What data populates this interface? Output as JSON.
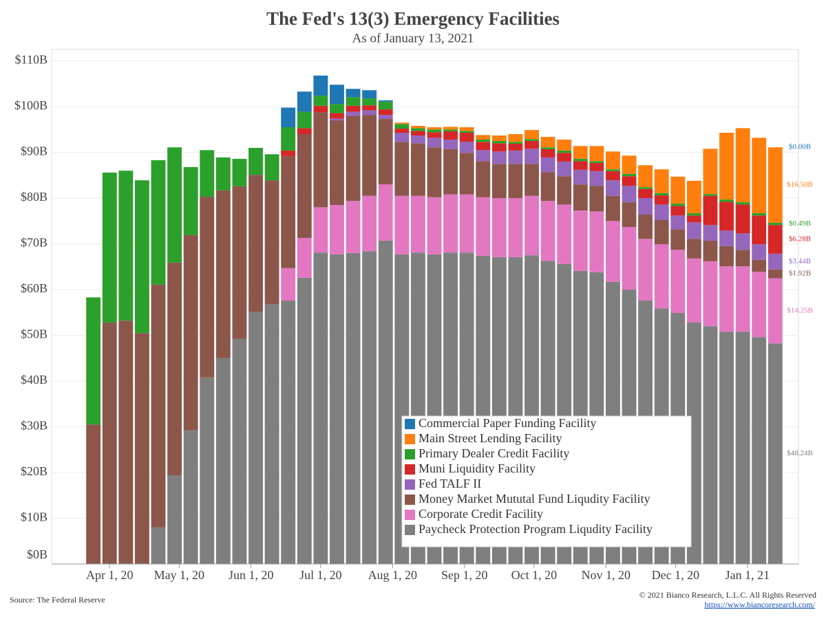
{
  "chart_data": {
    "type": "stacked_bar",
    "title": "The Fed's 13(3) Emergency Facilities",
    "subtitle": "As of January 13, 2021",
    "source": "Source: The Federal Reserve",
    "copyright": "© 2021 Bianco Research, L.L.C. All Rights Reserved",
    "url": "https://www.biancoresearch.com/",
    "x": [
      "2020-03-25",
      "2020-04-01",
      "2020-04-08",
      "2020-04-15",
      "2020-04-22",
      "2020-04-29",
      "2020-05-06",
      "2020-05-13",
      "2020-05-20",
      "2020-05-27",
      "2020-06-03",
      "2020-06-10",
      "2020-06-17",
      "2020-06-24",
      "2020-07-01",
      "2020-07-08",
      "2020-07-15",
      "2020-07-22",
      "2020-07-29",
      "2020-08-05",
      "2020-08-12",
      "2020-08-19",
      "2020-08-26",
      "2020-09-02",
      "2020-09-09",
      "2020-09-16",
      "2020-09-23",
      "2020-09-30",
      "2020-10-07",
      "2020-10-14",
      "2020-10-21",
      "2020-10-28",
      "2020-11-04",
      "2020-11-11",
      "2020-11-18",
      "2020-11-25",
      "2020-12-02",
      "2020-12-09",
      "2020-12-16",
      "2020-12-23",
      "2020-12-30",
      "2021-01-06",
      "2021-01-13"
    ],
    "xlim": [
      "2020-03-07",
      "2021-01-23"
    ],
    "xticks": [
      {
        "value": "2020-04-01",
        "label": "Apr 1, 20"
      },
      {
        "value": "2020-05-01",
        "label": "May 1, 20"
      },
      {
        "value": "2020-06-01",
        "label": "Jun 1, 20"
      },
      {
        "value": "2020-07-01",
        "label": "Jul 1, 20"
      },
      {
        "value": "2020-08-01",
        "label": "Aug 1, 20"
      },
      {
        "value": "2020-09-01",
        "label": "Sep 1, 20"
      },
      {
        "value": "2020-10-01",
        "label": "Oct 1, 20"
      },
      {
        "value": "2020-11-01",
        "label": "Nov 1, 20"
      },
      {
        "value": "2020-12-01",
        "label": "Dec 1, 20"
      },
      {
        "value": "2021-01-01",
        "label": "Jan 1, 21"
      }
    ],
    "ylim": [
      0,
      112.5
    ],
    "yticks": [
      {
        "value": 0,
        "label": "$0B"
      },
      {
        "value": 10,
        "label": "$10B"
      },
      {
        "value": 20,
        "label": "$20B"
      },
      {
        "value": 30,
        "label": "$30B"
      },
      {
        "value": 40,
        "label": "$40B"
      },
      {
        "value": 50,
        "label": "$50B"
      },
      {
        "value": 60,
        "label": "$60B"
      },
      {
        "value": 70,
        "label": "$70B"
      },
      {
        "value": 80,
        "label": "$80B"
      },
      {
        "value": 90,
        "label": "$90B"
      },
      {
        "value": 100,
        "label": "$100B"
      },
      {
        "value": 110,
        "label": "$110B"
      }
    ],
    "grid": true,
    "series": [
      {
        "name": "Commercial Paper Funding Facility",
        "color": "#1f77b4",
        "values": [
          0,
          0,
          0,
          0,
          0,
          0,
          0,
          0,
          0,
          0,
          0,
          0,
          4.3,
          4.4,
          4.4,
          4.2,
          1.8,
          1.8,
          0.3,
          0,
          0,
          0,
          0,
          0,
          0,
          0,
          0,
          0,
          0,
          0,
          0,
          0,
          0,
          0,
          0,
          0,
          0,
          0,
          0,
          0,
          0,
          0,
          0.0
        ],
        "value_labels": [
          null,
          null,
          null,
          null,
          null,
          null,
          null,
          null,
          null,
          null,
          null,
          null,
          null,
          null,
          null,
          null,
          null,
          null,
          null,
          null,
          null,
          null,
          null,
          null,
          null,
          null,
          null,
          null,
          null,
          null,
          null,
          null,
          null,
          null,
          null,
          null,
          null,
          null,
          null,
          null,
          null,
          null,
          "$0.00B"
        ]
      },
      {
        "name": "Main Street Lending Facility",
        "color": "#ff7f0e",
        "values": [
          0,
          0,
          0,
          0,
          0,
          0,
          0,
          0,
          0,
          0,
          0,
          0,
          0,
          0,
          0,
          0,
          0,
          0,
          0,
          0.3,
          0.5,
          0.5,
          0.6,
          0.8,
          1.0,
          1.2,
          1.7,
          2.0,
          2.3,
          2.4,
          2.8,
          3.3,
          3.9,
          4.0,
          4.8,
          5.2,
          5.9,
          7.1,
          9.9,
          14.6,
          16.2,
          16.5,
          16.5
        ],
        "value_labels": [
          null,
          null,
          null,
          null,
          null,
          null,
          null,
          null,
          null,
          null,
          null,
          null,
          null,
          null,
          null,
          null,
          null,
          null,
          null,
          null,
          null,
          null,
          null,
          null,
          null,
          null,
          null,
          null,
          null,
          null,
          null,
          null,
          null,
          null,
          null,
          null,
          null,
          null,
          null,
          null,
          null,
          null,
          "$16.50B"
        ]
      },
      {
        "name": "Primary Dealer Credit Facility",
        "color": "#2ca02c",
        "values": [
          27.8,
          32.8,
          32.8,
          33.4,
          27.2,
          25.2,
          14.9,
          10.2,
          7.2,
          6.0,
          5.9,
          5.7,
          5.1,
          3.6,
          2.2,
          2.0,
          1.9,
          1.5,
          1.7,
          1.0,
          0.6,
          0.6,
          0.4,
          0.4,
          0.5,
          0.5,
          0.4,
          0.4,
          0.4,
          0.5,
          0.5,
          0.4,
          0.4,
          0.5,
          0.4,
          0.5,
          0.5,
          0.5,
          0.4,
          0.5,
          0.5,
          0.5,
          0.49
        ],
        "value_labels": [
          null,
          null,
          null,
          null,
          null,
          null,
          null,
          null,
          null,
          null,
          null,
          null,
          null,
          null,
          null,
          null,
          null,
          null,
          null,
          null,
          null,
          null,
          null,
          null,
          null,
          null,
          null,
          null,
          null,
          null,
          null,
          null,
          null,
          null,
          null,
          null,
          null,
          null,
          null,
          null,
          null,
          null,
          "$0.49B"
        ]
      },
      {
        "name": "Muni Liquidity Facility",
        "color": "#d62728",
        "values": [
          0,
          0,
          0,
          0,
          0,
          0,
          0,
          0,
          0,
          0,
          0,
          0,
          1.2,
          1.3,
          1.4,
          1.2,
          1.3,
          1.1,
          1.2,
          0.9,
          1.0,
          1.2,
          1.8,
          2.0,
          1.8,
          1.8,
          1.5,
          1.7,
          1.8,
          1.9,
          1.9,
          1.8,
          2.0,
          2.1,
          2.0,
          2.0,
          2.1,
          1.5,
          6.4,
          6.3,
          6.3,
          6.3,
          6.28
        ],
        "value_labels": [
          null,
          null,
          null,
          null,
          null,
          null,
          null,
          null,
          null,
          null,
          null,
          null,
          null,
          null,
          null,
          null,
          null,
          null,
          null,
          null,
          null,
          null,
          null,
          null,
          null,
          null,
          null,
          null,
          null,
          null,
          null,
          null,
          null,
          null,
          null,
          null,
          null,
          null,
          null,
          null,
          null,
          null,
          "$6.28B"
        ]
      },
      {
        "name": "Fed TALF II",
        "color": "#9467bd",
        "values": [
          0,
          0,
          0,
          0,
          0,
          0,
          0,
          0,
          0,
          0,
          0,
          0,
          0,
          0,
          0,
          0.4,
          0.9,
          1.0,
          0.9,
          2.0,
          1.7,
          2.1,
          2.1,
          2.4,
          2.4,
          2.7,
          2.9,
          3.3,
          3.2,
          3.2,
          3.2,
          3.2,
          3.4,
          3.6,
          3.6,
          3.4,
          3.0,
          3.6,
          3.4,
          3.4,
          3.6,
          3.4,
          3.44
        ],
        "value_labels": [
          null,
          null,
          null,
          null,
          null,
          null,
          null,
          null,
          null,
          null,
          null,
          null,
          null,
          null,
          null,
          null,
          null,
          null,
          null,
          null,
          null,
          null,
          null,
          null,
          null,
          null,
          null,
          null,
          null,
          null,
          null,
          null,
          null,
          null,
          null,
          null,
          null,
          null,
          null,
          null,
          null,
          null,
          "$3.44B"
        ]
      },
      {
        "name": "Money Market Mututal Fund Liqudity Facility",
        "color": "#8c564b",
        "values": [
          30.5,
          52.8,
          53.2,
          50.5,
          53.1,
          46.5,
          42.7,
          39.5,
          36.7,
          33.4,
          29.9,
          27.1,
          24.5,
          22.7,
          20.8,
          18.5,
          18.6,
          17.7,
          14.3,
          11.8,
          11.5,
          10.9,
          9.9,
          9.1,
          7.9,
          7.5,
          7.5,
          7.0,
          6.3,
          6.2,
          5.7,
          5.6,
          5.5,
          5.4,
          5.3,
          5.3,
          4.5,
          4.3,
          4.5,
          4.4,
          3.6,
          2.6,
          1.92
        ],
        "value_labels": [
          null,
          null,
          null,
          null,
          null,
          null,
          null,
          null,
          null,
          null,
          null,
          null,
          null,
          null,
          null,
          null,
          null,
          null,
          null,
          null,
          null,
          null,
          null,
          null,
          null,
          null,
          null,
          null,
          null,
          null,
          null,
          null,
          null,
          null,
          null,
          null,
          null,
          null,
          null,
          null,
          null,
          null,
          "$1.92B"
        ]
      },
      {
        "name": "Corporate Credit Facility",
        "color": "#e377c2",
        "values": [
          0,
          0,
          0,
          0,
          0,
          0,
          0,
          0,
          0,
          0,
          0,
          0,
          7.1,
          8.7,
          9.9,
          10.8,
          11.4,
          12.1,
          12.3,
          12.8,
          12.4,
          12.5,
          12.7,
          12.7,
          12.8,
          12.9,
          12.9,
          13.0,
          13.1,
          13.0,
          13.2,
          13.3,
          13.3,
          13.7,
          13.5,
          14.0,
          13.8,
          14.0,
          14.2,
          14.3,
          14.3,
          14.3,
          14.25
        ],
        "value_labels": [
          null,
          null,
          null,
          null,
          null,
          null,
          null,
          null,
          null,
          null,
          null,
          null,
          null,
          null,
          null,
          null,
          null,
          null,
          null,
          null,
          null,
          null,
          null,
          null,
          null,
          null,
          null,
          null,
          null,
          null,
          null,
          null,
          null,
          null,
          null,
          null,
          null,
          null,
          null,
          null,
          null,
          null,
          "$14.25B"
        ]
      },
      {
        "name": "Paycheck Protection Program Liqudity Facility",
        "color": "#7f7f7f",
        "values": [
          0,
          0,
          0,
          0,
          8.0,
          19.4,
          29.2,
          40.8,
          45.0,
          49.2,
          55.2,
          56.8,
          57.6,
          62.6,
          68.1,
          67.7,
          68.0,
          68.4,
          70.7,
          67.7,
          68.1,
          67.7,
          68.1,
          68.1,
          67.4,
          67.1,
          67.1,
          67.5,
          66.3,
          65.6,
          64.1,
          63.8,
          61.7,
          60.0,
          57.6,
          55.9,
          54.9,
          52.8,
          52.0,
          50.8,
          50.8,
          49.6,
          48.24
        ],
        "value_labels": [
          null,
          null,
          null,
          null,
          null,
          null,
          null,
          null,
          null,
          null,
          null,
          null,
          null,
          null,
          null,
          null,
          null,
          null,
          null,
          null,
          null,
          null,
          null,
          null,
          null,
          null,
          null,
          null,
          null,
          null,
          null,
          null,
          null,
          null,
          null,
          null,
          null,
          null,
          null,
          null,
          null,
          null,
          "$48.24B"
        ]
      }
    ]
  }
}
